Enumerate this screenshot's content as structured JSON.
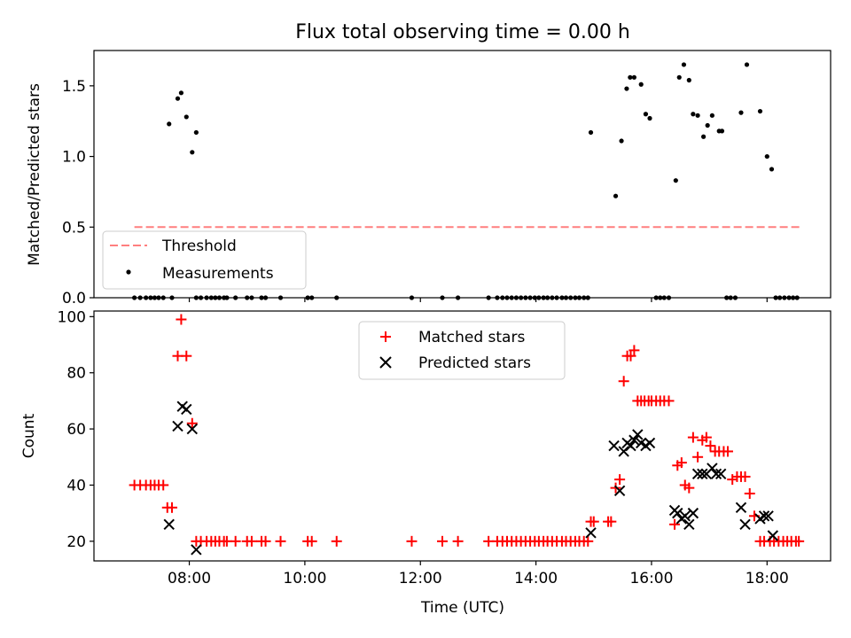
{
  "chart_data": [
    {
      "type": "scatter",
      "title": "Flux total observing time = 0.00 h",
      "xlabel": "",
      "ylabel": "Matched/Predicted stars",
      "xlim": [
        6.35,
        19.1
      ],
      "ylim": [
        0,
        1.75
      ],
      "yticks": [
        0.0,
        0.5,
        1.0,
        1.5
      ],
      "ytick_labels": [
        "0.0",
        "0.5",
        "1.0",
        "1.5"
      ],
      "xticks": [
        8,
        10,
        12,
        14,
        16,
        18
      ],
      "grid": false,
      "legend_position": "lower-left",
      "threshold": {
        "name": "Threshold",
        "value": 0.5,
        "x_range": [
          7.05,
          18.6
        ],
        "color": "#ff7f7f"
      },
      "series": [
        {
          "name": "Measurements",
          "color": "#000000",
          "x": [
            7.65,
            7.8,
            7.86,
            7.95,
            8.05,
            8.12,
            14.95,
            15.38,
            15.48,
            15.57,
            15.63,
            15.7,
            15.82,
            15.9,
            15.97,
            16.42,
            16.48,
            16.56,
            16.65,
            16.72,
            16.8,
            16.9,
            16.97,
            17.05,
            17.17,
            17.22,
            17.55,
            17.65,
            17.88,
            18.0,
            18.08
          ],
          "y": [
            1.23,
            1.41,
            1.45,
            1.28,
            1.03,
            1.17,
            1.17,
            0.72,
            1.11,
            1.48,
            1.56,
            1.56,
            1.51,
            1.3,
            1.27,
            0.83,
            1.56,
            1.65,
            1.54,
            1.3,
            1.29,
            1.14,
            1.22,
            1.29,
            1.18,
            1.18,
            1.31,
            1.65,
            1.32,
            1.0,
            0.91
          ],
          "zero_x": [
            7.05,
            7.15,
            7.25,
            7.33,
            7.4,
            7.47,
            7.55,
            7.7,
            8.12,
            8.2,
            8.3,
            8.38,
            8.45,
            8.52,
            8.6,
            8.65,
            8.8,
            9.0,
            9.08,
            9.25,
            9.32,
            9.58,
            10.05,
            10.12,
            10.55,
            11.85,
            12.38,
            12.65,
            13.18,
            13.33,
            13.42,
            13.5,
            13.58,
            13.66,
            13.74,
            13.82,
            13.9,
            13.98,
            14.05,
            14.13,
            14.2,
            14.28,
            14.36,
            14.45,
            14.52,
            14.6,
            14.68,
            14.75,
            14.83,
            14.9,
            16.08,
            16.15,
            16.22,
            16.3,
            17.3,
            17.37,
            17.45,
            18.15,
            18.22,
            18.3,
            18.38,
            18.45,
            18.52
          ]
        }
      ]
    },
    {
      "type": "scatter",
      "title": "",
      "xlabel": "Time (UTC)",
      "ylabel": "Count",
      "xlim": [
        6.35,
        19.1
      ],
      "ylim": [
        13,
        102
      ],
      "yticks": [
        20,
        40,
        60,
        80,
        100
      ],
      "ytick_labels": [
        "20",
        "40",
        "60",
        "80",
        "100"
      ],
      "xticks": [
        8,
        10,
        12,
        14,
        16,
        18
      ],
      "xtick_labels": [
        "08:00",
        "10:00",
        "12:00",
        "14:00",
        "16:00",
        "18:00"
      ],
      "grid": false,
      "legend_position": "upper-center",
      "series": [
        {
          "name": "Matched stars",
          "marker": "+",
          "color": "#ff0000",
          "x": [
            7.05,
            7.15,
            7.25,
            7.33,
            7.4,
            7.47,
            7.55,
            7.62,
            7.7,
            7.8,
            7.86,
            7.95,
            8.05,
            8.12,
            8.2,
            8.3,
            8.38,
            8.45,
            8.52,
            8.6,
            8.65,
            8.8,
            9.0,
            9.08,
            9.25,
            9.32,
            9.58,
            10.05,
            10.12,
            10.55,
            11.85,
            12.38,
            12.65,
            13.18,
            13.33,
            13.42,
            13.5,
            13.58,
            13.66,
            13.74,
            13.82,
            13.9,
            13.98,
            14.05,
            14.13,
            14.2,
            14.28,
            14.36,
            14.45,
            14.52,
            14.6,
            14.68,
            14.75,
            14.83,
            14.9,
            14.95,
            15.0,
            15.25,
            15.3,
            15.38,
            15.45,
            15.52,
            15.58,
            15.64,
            15.7,
            15.76,
            15.82,
            15.88,
            15.95,
            16.0,
            16.08,
            16.15,
            16.22,
            16.3,
            16.4,
            16.45,
            16.52,
            16.58,
            16.65,
            16.72,
            16.8,
            16.88,
            16.95,
            17.02,
            17.1,
            17.17,
            17.25,
            17.32,
            17.4,
            17.48,
            17.55,
            17.62,
            17.7,
            17.78,
            17.88,
            17.95,
            18.05,
            18.12,
            18.2,
            18.28,
            18.35,
            18.42,
            18.5,
            18.55
          ],
          "y": [
            40,
            40,
            40,
            40,
            40,
            40,
            40,
            32,
            32,
            86,
            99,
            86,
            62,
            20,
            20,
            20,
            20,
            20,
            20,
            20,
            20,
            20,
            20,
            20,
            20,
            20,
            20,
            20,
            20,
            20,
            20,
            20,
            20,
            20,
            20,
            20,
            20,
            20,
            20,
            20,
            20,
            20,
            20,
            20,
            20,
            20,
            20,
            20,
            20,
            20,
            20,
            20,
            20,
            20,
            20,
            27,
            27,
            27,
            27,
            39,
            42,
            77,
            86,
            86,
            88,
            70,
            70,
            70,
            70,
            70,
            70,
            70,
            70,
            70,
            26,
            47,
            48,
            40,
            39,
            57,
            50,
            56,
            57,
            54,
            52,
            52,
            52,
            52,
            42,
            43,
            43,
            43,
            37,
            29,
            20,
            20,
            20,
            20,
            20,
            20,
            20,
            20,
            20,
            20
          ]
        },
        {
          "name": "Predicted stars",
          "marker": "x",
          "color": "#000000",
          "x": [
            7.65,
            7.8,
            7.88,
            7.95,
            8.05,
            8.12,
            14.95,
            15.35,
            15.45,
            15.52,
            15.58,
            15.64,
            15.7,
            15.76,
            15.82,
            15.9,
            15.97,
            16.4,
            16.45,
            16.52,
            16.58,
            16.65,
            16.72,
            16.8,
            16.88,
            16.95,
            17.05,
            17.12,
            17.2,
            17.55,
            17.62,
            17.88,
            17.95,
            18.02,
            18.1
          ],
          "y": [
            26,
            61,
            68,
            67,
            60,
            17,
            23,
            54,
            38,
            52,
            55,
            54,
            56,
            58,
            55,
            54,
            55,
            31,
            30,
            28,
            29,
            26,
            30,
            44,
            44,
            44,
            46,
            44,
            44,
            32,
            26,
            28,
            29,
            29,
            22
          ]
        }
      ]
    }
  ]
}
